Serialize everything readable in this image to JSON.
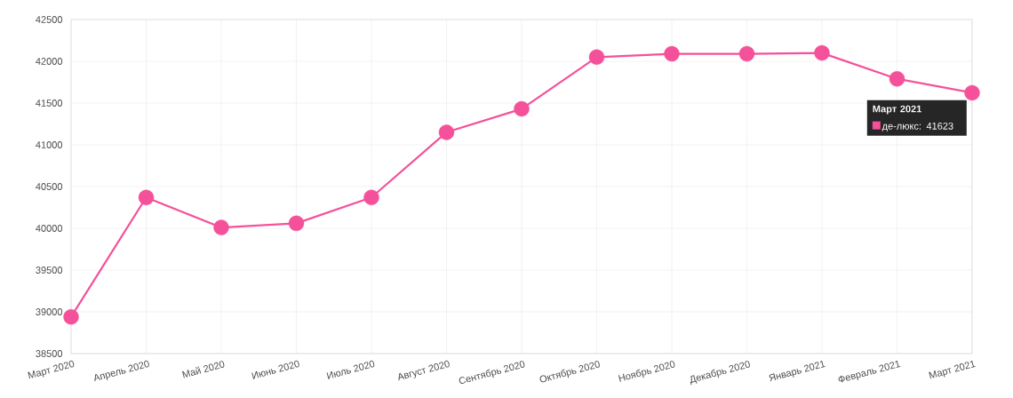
{
  "chart_data": {
    "type": "line",
    "categories": [
      "Март 2020",
      "Апрель 2020",
      "Май 2020",
      "Июнь 2020",
      "Июль 2020",
      "Август 2020",
      "Сентябрь 2020",
      "Октябрь 2020",
      "Ноябрь 2020",
      "Декабрь 2020",
      "Январь 2021",
      "Февраль 2021",
      "Март 2021"
    ],
    "series": [
      {
        "color": "#f4519a",
        "values": [
          38940,
          40370,
          40010,
          40060,
          40370,
          41150,
          41430,
          42050,
          42090,
          42090,
          42100,
          41790,
          41623
        ]
      }
    ],
    "ylim": [
      38500,
      42500
    ],
    "yticks": [
      38500,
      39000,
      39500,
      40000,
      40500,
      41000,
      41500,
      42000,
      42500
    ],
    "grid": true,
    "marker": "circle",
    "line_style": "solid",
    "annotations": [
      "Март 2021",
      "де-люкс: 41623"
    ]
  }
}
